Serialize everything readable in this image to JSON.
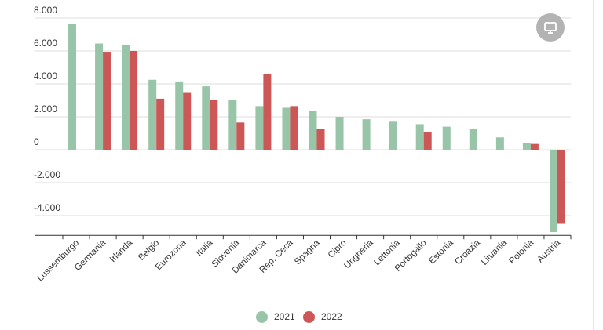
{
  "chart_data": {
    "type": "bar",
    "categories": [
      "Lussemburgo",
      "Germania",
      "Irlanda",
      "Belgio",
      "Eurozona",
      "Italia",
      "Slovenia",
      "Danimarca",
      "Rep. Ceca",
      "Spagna",
      "Cipro",
      "Ungheria",
      "Lettonia",
      "Portogallo",
      "Estonia",
      "Croazia",
      "Lituania",
      "Polonia",
      "Austria"
    ],
    "series": [
      {
        "name": "2021",
        "color": "#98c5a8",
        "values": [
          7650,
          6450,
          6350,
          4250,
          4150,
          3850,
          3000,
          2650,
          2550,
          2350,
          2000,
          1850,
          1700,
          1550,
          1400,
          1250,
          750,
          400,
          -5000
        ]
      },
      {
        "name": "2022",
        "color": "#cd5656",
        "values": [
          null,
          5950,
          6000,
          3100,
          3450,
          3050,
          1650,
          4600,
          2650,
          1250,
          null,
          null,
          null,
          1050,
          null,
          null,
          null,
          350,
          -4500
        ]
      }
    ],
    "yticks": [
      8000,
      6000,
      4000,
      2000,
      0,
      -2000,
      -4000
    ],
    "ytick_labels": [
      "8.000",
      "6.000",
      "4.000",
      "2.000",
      "0",
      "-2.000",
      "-4.000"
    ],
    "ylim": [
      -5200,
      8000
    ],
    "grid": true,
    "legend_position": "bottom-center",
    "title": "",
    "xlabel": "",
    "ylabel": ""
  },
  "controls": {
    "screen_icon": "monitor-icon"
  }
}
